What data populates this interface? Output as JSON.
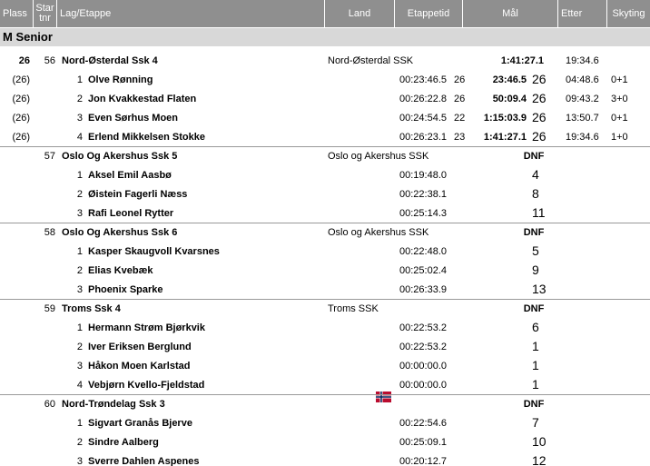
{
  "header": [
    "Plass",
    "Star tnr",
    "Lag/Etappe",
    "Land",
    "Etappetid",
    "Mål",
    "Etter",
    "Skyting"
  ],
  "section": "M Senior",
  "teams": [
    {
      "place": "26",
      "bib": "56",
      "name": "Nord-Østerdal Ssk 4",
      "club": "Nord-Østerdal SSK",
      "result": "1:41:27.1",
      "behind": "19:34.6",
      "legs": [
        {
          "place": "(26)",
          "leg": "1",
          "name": "Olve Rønning",
          "leg_time": "00:23:46.5",
          "leg_rank": "26",
          "total": "23:46.5",
          "rank": "26",
          "behind": "04:48.6",
          "shooting": "0+1"
        },
        {
          "place": "(26)",
          "leg": "2",
          "name": "Jon Kvakkestad Flaten",
          "leg_time": "00:26:22.8",
          "leg_rank": "26",
          "total": "50:09.4",
          "rank": "26",
          "behind": "09:43.2",
          "shooting": "3+0"
        },
        {
          "place": "(26)",
          "leg": "3",
          "name": "Even Sørhus Moen",
          "leg_time": "00:24:54.5",
          "leg_rank": "22",
          "total": "1:15:03.9",
          "rank": "26",
          "behind": "13:50.7",
          "shooting": "0+1"
        },
        {
          "place": "(26)",
          "leg": "4",
          "name": "Erlend Mikkelsen Stokke",
          "leg_time": "00:26:23.1",
          "leg_rank": "23",
          "total": "1:41:27.1",
          "rank": "26",
          "behind": "19:34.6",
          "shooting": "1+0"
        }
      ]
    },
    {
      "bib": "57",
      "name": "Oslo Og Akershus Ssk 5",
      "club": "Oslo og Akershus SSK",
      "result": "DNF",
      "legs": [
        {
          "leg": "1",
          "name": "Aksel Emil Aasbø",
          "leg_time": "00:19:48.0",
          "rank": "4"
        },
        {
          "leg": "2",
          "name": "Øistein Fagerli Næss",
          "leg_time": "00:22:38.1",
          "rank": "8"
        },
        {
          "leg": "3",
          "name": "Rafi Leonel Rytter",
          "leg_time": "00:25:14.3",
          "rank": "11"
        }
      ]
    },
    {
      "bib": "58",
      "name": "Oslo Og Akershus Ssk 6",
      "club": "Oslo og Akershus SSK",
      "result": "DNF",
      "legs": [
        {
          "leg": "1",
          "name": "Kasper Skaugvoll Kvarsnes",
          "leg_time": "00:22:48.0",
          "rank": "5"
        },
        {
          "leg": "2",
          "name": "Elias Kvebæk",
          "leg_time": "00:25:02.4",
          "rank": "9"
        },
        {
          "leg": "3",
          "name": "Phoenix Sparke",
          "leg_time": "00:26:33.9",
          "rank": "13"
        }
      ]
    },
    {
      "bib": "59",
      "name": "Troms Ssk 4",
      "club": "Troms SSK",
      "result": "DNF",
      "legs": [
        {
          "leg": "1",
          "name": "Hermann Strøm Bjørkvik",
          "leg_time": "00:22:53.2",
          "rank": "6"
        },
        {
          "leg": "2",
          "name": "Iver Eriksen Berglund",
          "leg_time": "00:22:53.2",
          "rank": "1"
        },
        {
          "leg": "3",
          "name": "Håkon Moen Karlstad",
          "leg_time": "00:00:00.0",
          "rank": "1"
        },
        {
          "leg": "4",
          "name": "Vebjørn Kvello-Fjeldstad",
          "leg_time": "00:00:00.0",
          "rank": "1"
        }
      ]
    },
    {
      "bib": "60",
      "name": "Nord-Trøndelag Ssk 3",
      "result": "DNF",
      "legs": [
        {
          "leg": "1",
          "name": "Sigvart Granås Bjerve",
          "leg_time": "00:22:54.6",
          "rank": "7"
        },
        {
          "leg": "2",
          "name": "Sindre Aalberg",
          "leg_time": "00:25:09.1",
          "rank": "10"
        },
        {
          "leg": "3",
          "name": "Sverre Dahlen Aspenes",
          "leg_time": "00:20:12.7",
          "rank": "12"
        }
      ]
    }
  ]
}
